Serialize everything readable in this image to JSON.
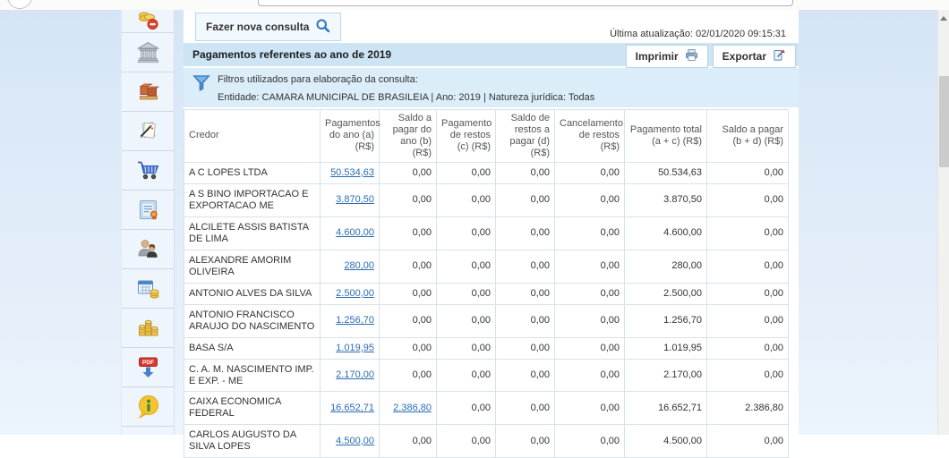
{
  "page": {
    "last_update": "Última atualização: 02/01/2020 09:15:31"
  },
  "toolbar": {
    "new_query_label": "Fazer nova consulta"
  },
  "panel": {
    "title": "Pagamentos referentes ao ano de 2019",
    "print_label": "Imprimir",
    "export_label": "Exportar"
  },
  "filters": {
    "line1": "Filtros utilizados para elaboração da consulta:",
    "line2": "Entidade: CAMARA MUNICIPAL DE BRASILEIA | Ano: 2019 | Natureza jurídica: Todas"
  },
  "sidebar": {
    "items": [
      {
        "icon": "coins-remove-icon"
      },
      {
        "icon": "bank-icon"
      },
      {
        "icon": "boxes-icon"
      },
      {
        "icon": "document-pen-icon"
      },
      {
        "icon": "shopping-cart-icon"
      },
      {
        "icon": "certificate-icon"
      },
      {
        "icon": "people-icon"
      },
      {
        "icon": "calendar-coins-icon"
      },
      {
        "icon": "coin-stacks-icon"
      },
      {
        "icon": "pdf-download-icon"
      },
      {
        "icon": "info-balloon-icon"
      }
    ]
  },
  "table": {
    "headers": [
      "Credor",
      "Pagamentos do ano (a) (R$)",
      "Saldo a pagar do ano (b) (R$)",
      "Pagamento de restos (c) (R$)",
      "Saldo de restos a pagar (d) (R$)",
      "Cancelamento de restos (R$)",
      "Pagamento total (a + c) (R$)",
      "Saldo a pagar (b + d) (R$)"
    ],
    "rows": [
      {
        "credor": "A C LOPES LTDA",
        "values": [
          "50.534,63",
          "0,00",
          "0,00",
          "0,00",
          "0,00",
          "50.534,63",
          "0,00"
        ],
        "link_cols": [
          0
        ]
      },
      {
        "credor": "A S BINO IMPORTACAO E EXPORTACAO ME",
        "values": [
          "3.870,50",
          "0,00",
          "0,00",
          "0,00",
          "0,00",
          "3.870,50",
          "0,00"
        ],
        "link_cols": [
          0
        ]
      },
      {
        "credor": "ALCILETE ASSIS BATISTA DE LIMA",
        "values": [
          "4.600,00",
          "0,00",
          "0,00",
          "0,00",
          "0,00",
          "4.600,00",
          "0,00"
        ],
        "link_cols": [
          0
        ]
      },
      {
        "credor": "ALEXANDRE AMORIM OLIVEIRA",
        "values": [
          "280,00",
          "0,00",
          "0,00",
          "0,00",
          "0,00",
          "280,00",
          "0,00"
        ],
        "link_cols": [
          0
        ]
      },
      {
        "credor": "ANTONIO ALVES DA SILVA",
        "values": [
          "2.500,00",
          "0,00",
          "0,00",
          "0,00",
          "0,00",
          "2.500,00",
          "0,00"
        ],
        "link_cols": [
          0
        ]
      },
      {
        "credor": "ANTONIO FRANCISCO ARAUJO DO NASCIMENTO",
        "values": [
          "1.256,70",
          "0,00",
          "0,00",
          "0,00",
          "0,00",
          "1.256,70",
          "0,00"
        ],
        "link_cols": [
          0
        ]
      },
      {
        "credor": "BASA S/A",
        "values": [
          "1.019,95",
          "0,00",
          "0,00",
          "0,00",
          "0,00",
          "1.019,95",
          "0,00"
        ],
        "link_cols": [
          0
        ]
      },
      {
        "credor": "C. A. M. NASCIMENTO IMP. E EXP. - ME",
        "values": [
          "2.170,00",
          "0,00",
          "0,00",
          "0,00",
          "0,00",
          "2.170,00",
          "0,00"
        ],
        "link_cols": [
          0
        ]
      },
      {
        "credor": "CAIXA ECONOMICA FEDERAL",
        "values": [
          "16.652,71",
          "2.386,80",
          "0,00",
          "0,00",
          "0,00",
          "16.652,71",
          "2.386,80"
        ],
        "link_cols": [
          0,
          1
        ]
      },
      {
        "credor": "CARLOS AUGUSTO DA SILVA LOPES",
        "values": [
          "4.500,00",
          "0,00",
          "0,00",
          "0,00",
          "0,00",
          "4.500,00",
          "0,00"
        ],
        "link_cols": [
          0
        ]
      }
    ]
  },
  "colors": {
    "accent_blue": "#2f77c0",
    "link_blue": "#2b6cb5",
    "panel_header_bg": "#cde4f5",
    "filter_bg": "#dcedfa",
    "page_bg_top": "#d5e5f6",
    "table_border": "#d6e2ef"
  }
}
